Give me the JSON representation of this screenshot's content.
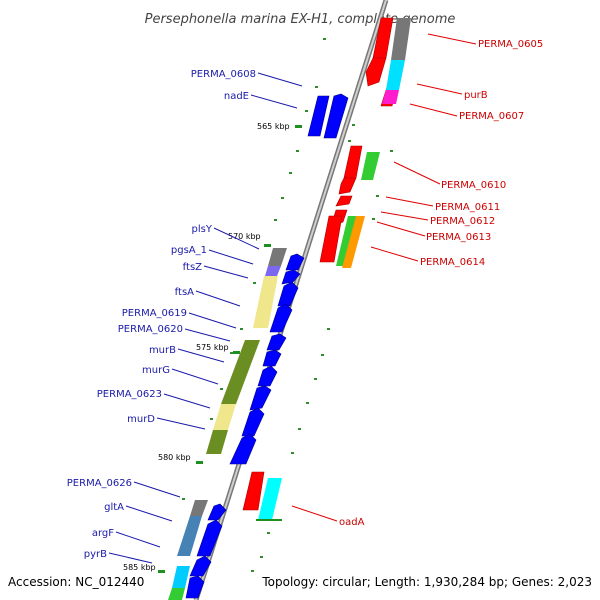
{
  "title": "Persephonella marina EX-H1, complete genome",
  "footer": {
    "accession": "Accession: NC_012440",
    "summary": "Topology: circular; Length: 1,930,284 bp; Genes: 2,023"
  },
  "ticks": [
    "565 kbp",
    "570 kbp",
    "575 kbp",
    "580 kbp",
    "585 kbp"
  ],
  "forward_labels": [
    "PERMA_0605",
    "purB",
    "PERMA_0607",
    "PERMA_0610",
    "PERMA_0611",
    "PERMA_0612",
    "PERMA_0613",
    "PERMA_0614",
    "oadA"
  ],
  "reverse_labels": [
    "PERMA_0608",
    "nadE",
    "plsY",
    "pgsA_1",
    "ftsZ",
    "ftsA",
    "PERMA_0619",
    "PERMA_0620",
    "murB",
    "murG",
    "PERMA_0623",
    "murD",
    "PERMA_0626",
    "gltA",
    "argF",
    "pyrB"
  ],
  "colors": {
    "forward_gene": "#ff0000",
    "reverse_gene": "#0000ff",
    "forward_label": "#cc0000",
    "reverse_label": "#1a1aaa",
    "backbone": "#888888",
    "tick_mark": "#228B22",
    "cog_gray": "#808080",
    "cog_cyan": "#00e5ff",
    "cog_magenta": "#ff1dce",
    "cog_green": "#33cc33",
    "cog_orange": "#ff9900",
    "cog_olive": "#6b8e23",
    "cog_khaki": "#f0e68c",
    "cog_purple": "#7b68ee",
    "cog_steelblue": "#4682b4"
  }
}
